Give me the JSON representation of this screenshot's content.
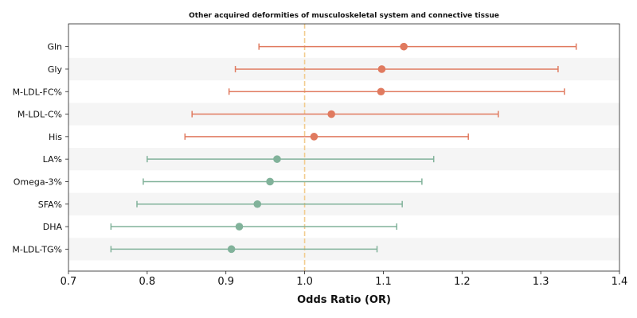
{
  "chart_data": {
    "type": "forest",
    "title": "Other acquired deformities of musculoskeletal system and connective tissue",
    "xlabel": "Odds Ratio (OR)",
    "xlim": [
      0.7,
      1.4
    ],
    "xticks": [
      "0.7",
      "0.8",
      "0.9",
      "1.0",
      "1.1",
      "1.2",
      "1.3",
      "1.4"
    ],
    "reference_line": 1.0,
    "grid": false,
    "colors": {
      "above": "#e07a5f",
      "below": "#81b29a",
      "reference": "#f2cc8f",
      "band": "#f5f5f5"
    },
    "rows": [
      {
        "label": "Gln",
        "or": 1.126,
        "lower": 0.942,
        "upper": 1.345,
        "group": "above"
      },
      {
        "label": "Gly",
        "or": 1.098,
        "lower": 0.912,
        "upper": 1.322,
        "group": "above"
      },
      {
        "label": "M-LDL-FC%",
        "or": 1.097,
        "lower": 0.904,
        "upper": 1.33,
        "group": "above"
      },
      {
        "label": "M-LDL-C%",
        "or": 1.034,
        "lower": 0.857,
        "upper": 1.246,
        "group": "above"
      },
      {
        "label": "His",
        "or": 1.012,
        "lower": 0.848,
        "upper": 1.208,
        "group": "above"
      },
      {
        "label": "LA%",
        "or": 0.965,
        "lower": 0.8,
        "upper": 1.164,
        "group": "below"
      },
      {
        "label": "Omega-3%",
        "or": 0.956,
        "lower": 0.795,
        "upper": 1.149,
        "group": "below"
      },
      {
        "label": "SFA%",
        "or": 0.94,
        "lower": 0.787,
        "upper": 1.124,
        "group": "below"
      },
      {
        "label": "DHA",
        "or": 0.917,
        "lower": 0.754,
        "upper": 1.117,
        "group": "below"
      },
      {
        "label": "M-LDL-TG%",
        "or": 0.907,
        "lower": 0.754,
        "upper": 1.092,
        "group": "below"
      }
    ]
  }
}
